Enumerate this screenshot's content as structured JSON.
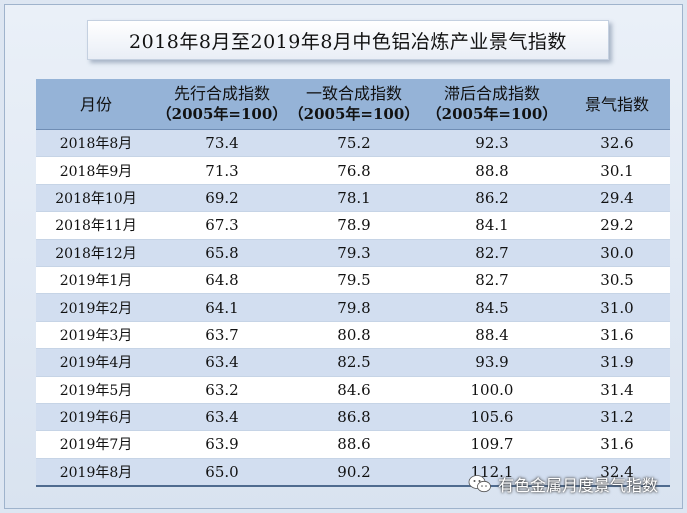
{
  "title": "2018年8月至2019年8月中色铝冶炼产业景气指数",
  "table": {
    "headers": [
      {
        "main": "月份",
        "sub": ""
      },
      {
        "main": "先行合成指数",
        "sub": "（2005年=100）"
      },
      {
        "main": "一致合成指数",
        "sub": "（2005年=100）"
      },
      {
        "main": "滞后合成指数",
        "sub": "（2005年=100）"
      },
      {
        "main": "景气指数",
        "sub": ""
      }
    ],
    "rows": [
      [
        "2018年8月",
        "73.4",
        "75.2",
        "92.3",
        "32.6"
      ],
      [
        "2018年9月",
        "71.3",
        "76.8",
        "88.8",
        "30.1"
      ],
      [
        "2018年10月",
        "69.2",
        "78.1",
        "86.2",
        "29.4"
      ],
      [
        "2018年11月",
        "67.3",
        "78.9",
        "84.1",
        "29.2"
      ],
      [
        "2018年12月",
        "65.8",
        "79.3",
        "82.7",
        "30.0"
      ],
      [
        "2019年1月",
        "64.8",
        "79.5",
        "82.7",
        "30.5"
      ],
      [
        "2019年2月",
        "64.1",
        "79.8",
        "84.5",
        "31.0"
      ],
      [
        "2019年3月",
        "63.7",
        "80.8",
        "88.4",
        "31.6"
      ],
      [
        "2019年4月",
        "63.4",
        "82.5",
        "93.9",
        "31.9"
      ],
      [
        "2019年5月",
        "63.2",
        "84.6",
        "100.0",
        "31.4"
      ],
      [
        "2019年6月",
        "63.4",
        "86.8",
        "105.6",
        "31.2"
      ],
      [
        "2019年7月",
        "63.9",
        "88.6",
        "109.7",
        "31.6"
      ],
      [
        "2019年8月",
        "65.0",
        "90.2",
        "112.1",
        "32.4"
      ]
    ]
  },
  "watermark": {
    "text": "有色金属月度景气指数",
    "icon": "wechat-icon"
  },
  "colors": {
    "header_bg": "#95b3d7",
    "row_odd": "#d2def0",
    "row_even": "#ffffff",
    "page_bg": "#dde6f2"
  }
}
